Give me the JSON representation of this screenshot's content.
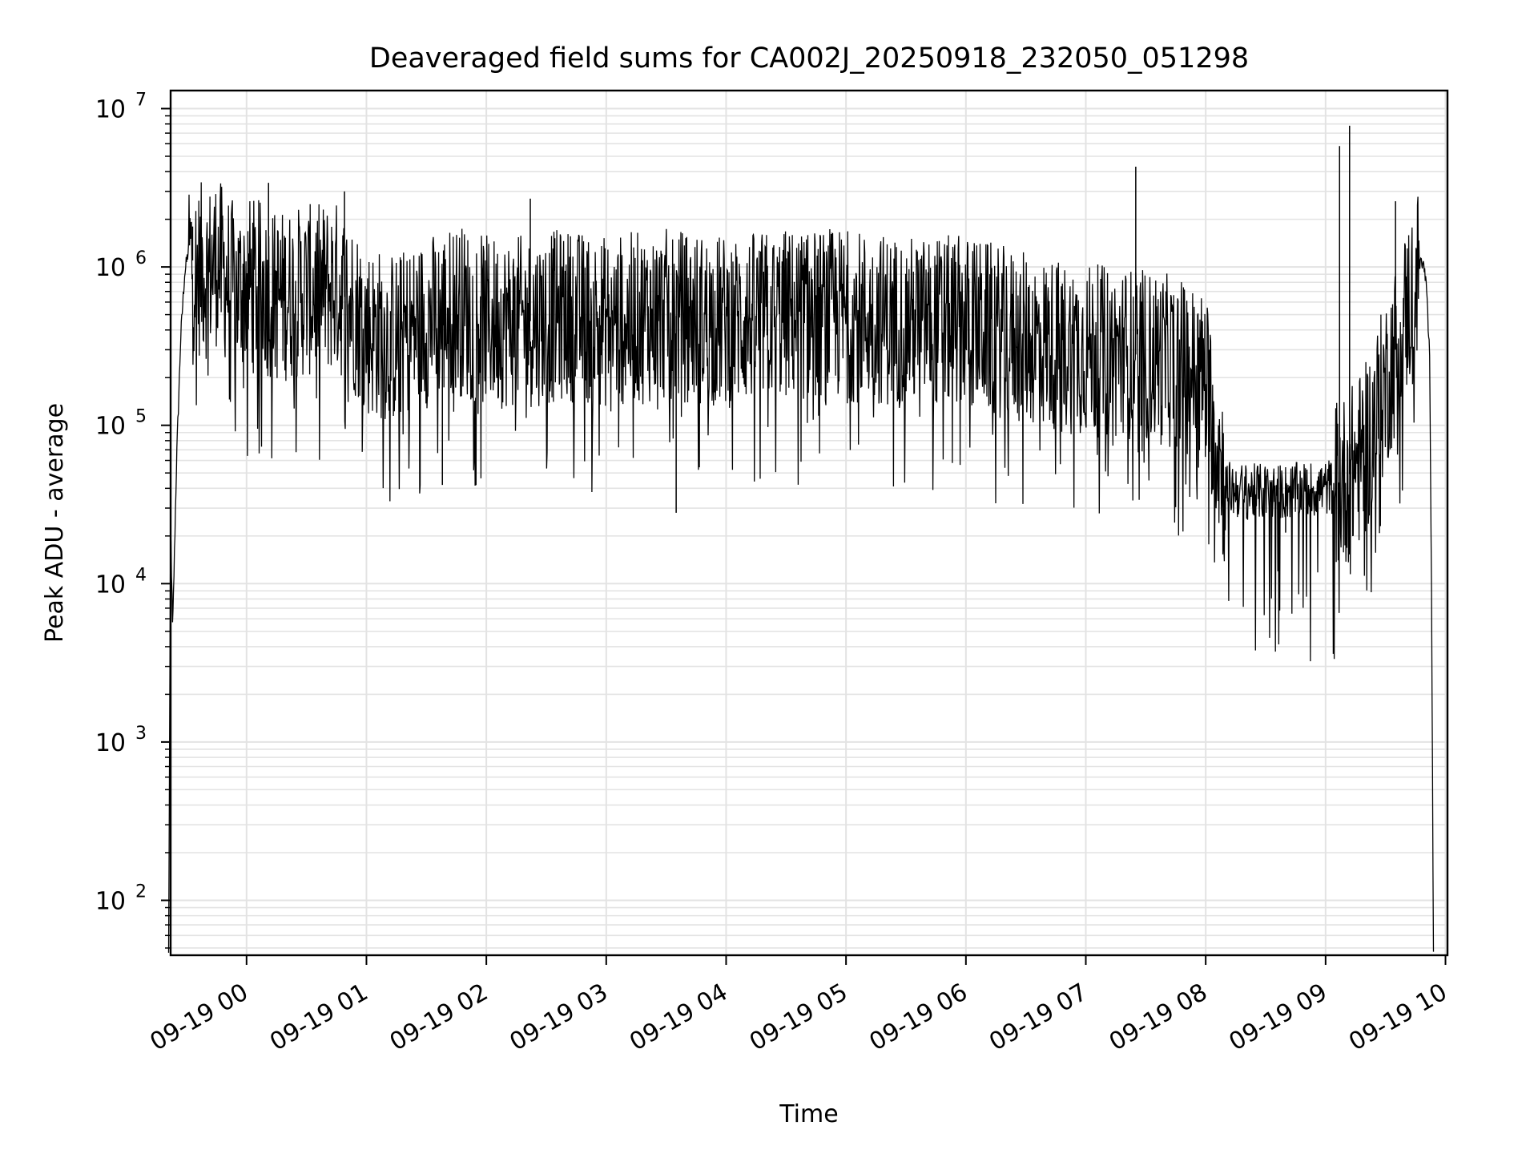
{
  "chart_data": {
    "type": "line",
    "title": "Deaveraged field sums for CA002J_20250918_232050_051298",
    "xlabel": "Time",
    "ylabel": "Peak ADU - average",
    "yscale": "log",
    "ylim": [
      45,
      13000000
    ],
    "xlim": [
      "2025-09-18 23:22",
      "2025-09-19 10:01"
    ],
    "grid": "major and minor, both axes",
    "line_color": "#000000",
    "x_tick_labels": [
      "09-19 00",
      "09-19 01",
      "09-19 02",
      "09-19 03",
      "09-19 04",
      "09-19 05",
      "09-19 06",
      "09-19 07",
      "09-19 08",
      "09-19 09",
      "09-19 10"
    ],
    "y_tick_labels": [
      {
        "base": "10",
        "exp": "2",
        "value": 100
      },
      {
        "base": "10",
        "exp": "3",
        "value": 1000
      },
      {
        "base": "10",
        "exp": "4",
        "value": 10000
      },
      {
        "base": "10",
        "exp": "5",
        "value": 100000
      },
      {
        "base": "10",
        "exp": "6",
        "value": 1000000
      },
      {
        "base": "10",
        "exp": "7",
        "value": 10000000
      }
    ],
    "series": [
      {
        "x": [
          "2025-09-18 23:21",
          "2025-09-18 23:22",
          "2025-09-18 23:23",
          "2025-09-18 23:25",
          "2025-09-18 23:27",
          "2025-09-18 23:29",
          "2025-09-18 23:31",
          "2025-09-18 23:33",
          "2025-09-18 23:35",
          "2025-09-18 23:38",
          "2025-09-18 23:40",
          "2025-09-18 23:45",
          "2025-09-18 23:50",
          "2025-09-18 23:55",
          "2025-09-19 00:00",
          "2025-09-19 00:07",
          "2025-09-19 00:15",
          "2025-09-19 00:30",
          "2025-09-19 00:45",
          "2025-09-19 00:56",
          "2025-09-19 01:00",
          "2025-09-19 01:15",
          "2025-09-19 01:30",
          "2025-09-19 01:38",
          "2025-09-19 01:45",
          "2025-09-19 02:00",
          "2025-09-19 02:20",
          "2025-09-19 02:40",
          "2025-09-19 03:00",
          "2025-09-19 03:30",
          "2025-09-19 04:00",
          "2025-09-19 04:30",
          "2025-09-19 05:00",
          "2025-09-19 05:30",
          "2025-09-19 06:00",
          "2025-09-19 06:30",
          "2025-09-19 07:00",
          "2025-09-19 07:25",
          "2025-09-19 07:45",
          "2025-09-19 08:00",
          "2025-09-19 08:10",
          "2025-09-19 08:20",
          "2025-09-19 08:40",
          "2025-09-19 09:00",
          "2025-09-19 09:10",
          "2025-09-19 09:20",
          "2025-09-19 09:30",
          "2025-09-19 09:40",
          "2025-09-19 09:45",
          "2025-09-19 09:48",
          "2025-09-19 09:50",
          "2025-09-19 09:52",
          "2025-09-19 09:53",
          "2025-09-19 09:54"
        ],
        "y": [
          45,
          25000,
          5000,
          60000,
          350000,
          900000,
          1300000,
          1100000,
          900000,
          1000000,
          900000,
          1100000,
          850000,
          700000,
          800000,
          750000,
          650000,
          700000,
          750000,
          500000,
          400000,
          350000,
          450000,
          500000,
          550000,
          450000,
          450000,
          500000,
          450000,
          500000,
          450000,
          500000,
          500000,
          450000,
          450000,
          350000,
          300000,
          280000,
          250000,
          200000,
          40000,
          38000,
          38000,
          40000,
          45000,
          70000,
          180000,
          500000,
          800000,
          1100000,
          900000,
          300000,
          10000,
          45
        ],
        "spikes": [
          {
            "x": "2025-09-18 23:33",
            "y": 1800000
          },
          {
            "x": "2025-09-19 00:11",
            "y": 3400000
          },
          {
            "x": "2025-09-19 00:49",
            "y": 3000000
          },
          {
            "x": "2025-09-19 02:22",
            "y": 2700000
          },
          {
            "x": "2025-09-19 03:35",
            "y": 28000
          },
          {
            "x": "2025-09-19 01:38",
            "y": 42000
          },
          {
            "x": "2025-09-19 07:25",
            "y": 4300000
          },
          {
            "x": "2025-09-19 09:07",
            "y": 5800000
          },
          {
            "x": "2025-09-19 09:12",
            "y": 7800000
          },
          {
            "x": "2025-09-19 08:40",
            "y": 21000
          },
          {
            "x": "2025-09-19 09:35",
            "y": 2600000
          }
        ]
      }
    ]
  }
}
